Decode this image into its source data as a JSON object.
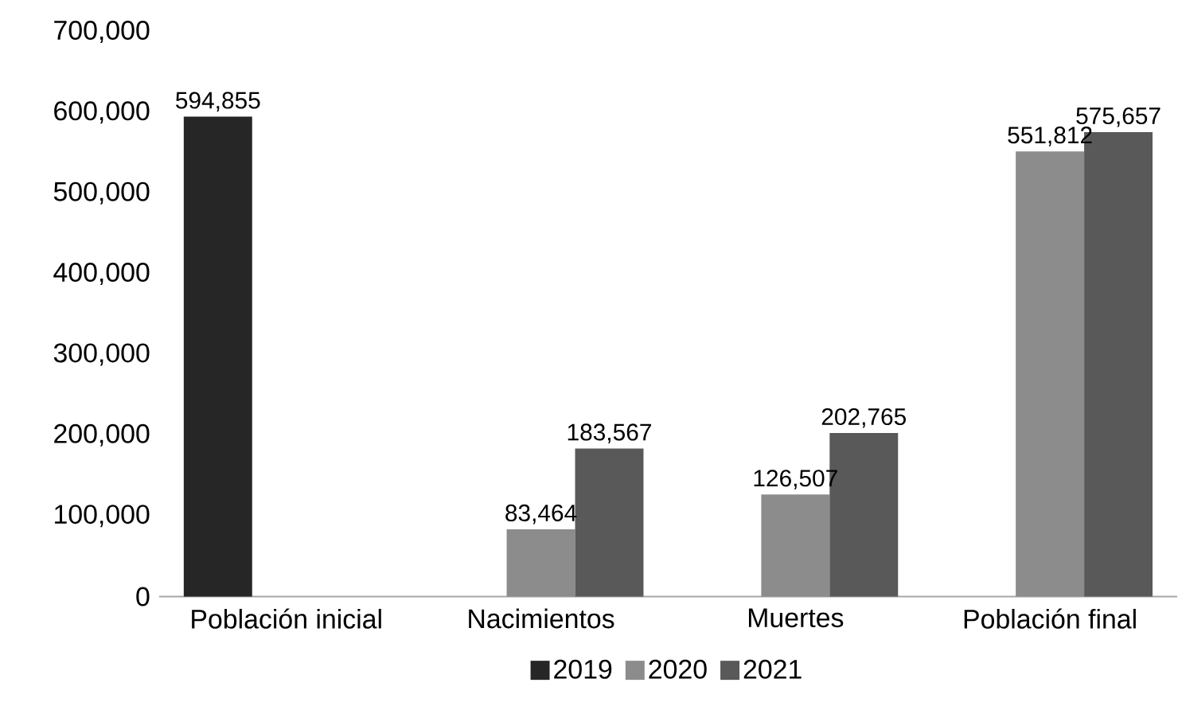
{
  "chart_data": {
    "type": "bar",
    "categories": [
      "Población inicial",
      "Nacimientos",
      "Muertes",
      "Población final"
    ],
    "series": [
      {
        "name": "2019",
        "color": "#262626",
        "values": [
          594855,
          null,
          null,
          null
        ],
        "value_labels": [
          "594,855",
          null,
          null,
          null
        ]
      },
      {
        "name": "2020",
        "color": "#8c8c8c",
        "values": [
          null,
          83464,
          126507,
          551812
        ],
        "value_labels": [
          null,
          "83,464",
          "126,507",
          "551,812"
        ]
      },
      {
        "name": "2021",
        "color": "#595959",
        "values": [
          null,
          183567,
          202765,
          575657
        ],
        "value_labels": [
          null,
          "183,567",
          "202,765",
          "575,657"
        ]
      }
    ],
    "ylim": [
      0,
      700000
    ],
    "yticks": [
      0,
      {
        "value": 100000,
        "label": "100,000"
      },
      {
        "value": 200000,
        "label": "200,000"
      },
      {
        "value": 300000,
        "label": "300,000"
      },
      {
        "value": 400000,
        "label": "400,000"
      },
      {
        "value": 500000,
        "label": "500,000"
      },
      {
        "value": 600000,
        "label": "600,000"
      },
      {
        "value": 700000,
        "label": "700,000"
      }
    ],
    "grid": false,
    "legend": "bottom"
  }
}
